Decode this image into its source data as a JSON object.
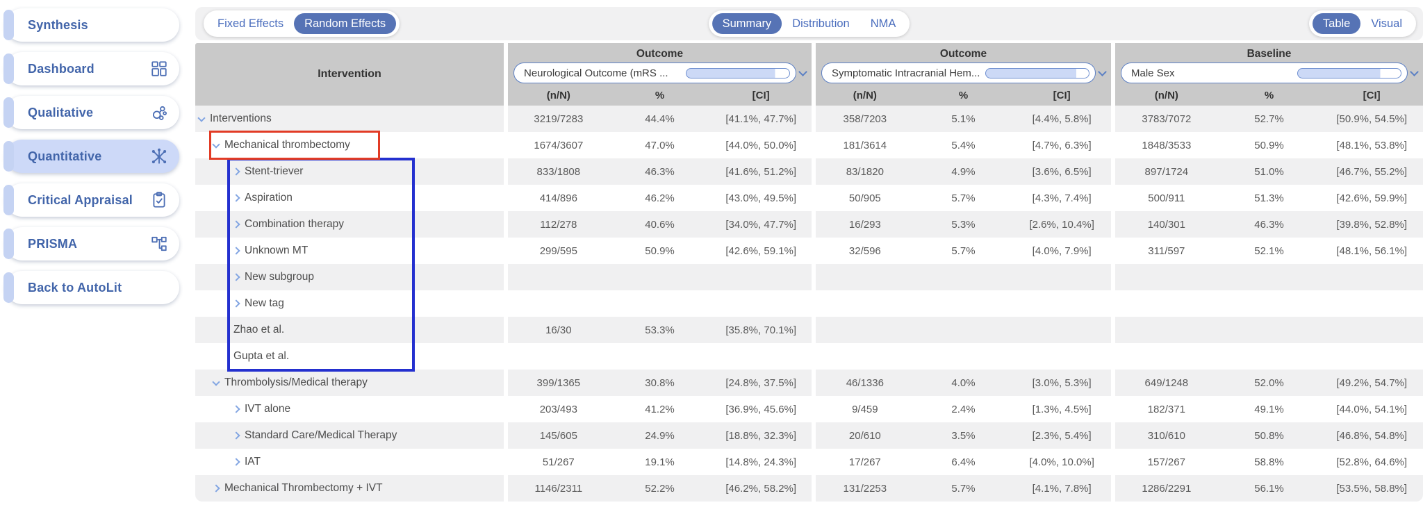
{
  "sidebar": {
    "items": [
      {
        "label": "Synthesis",
        "icon": null,
        "active": false
      },
      {
        "label": "Dashboard",
        "icon": "dashboard-grid-icon",
        "active": false
      },
      {
        "label": "Qualitative",
        "icon": "qualitative-bubbles-icon",
        "active": false
      },
      {
        "label": "Quantitative",
        "icon": "network-graph-icon",
        "active": true
      },
      {
        "label": "Critical Appraisal",
        "icon": "clipboard-check-icon",
        "active": false
      },
      {
        "label": "PRISMA",
        "icon": "flow-diagram-icon",
        "active": false
      },
      {
        "label": "Back to AutoLit",
        "icon": null,
        "active": false
      }
    ]
  },
  "toolbar": {
    "effects_options": [
      "Fixed Effects",
      "Random Effects"
    ],
    "effects_selected": "Random Effects",
    "view_options": [
      "Summary",
      "Distribution",
      "NMA"
    ],
    "view_selected": "Summary",
    "display_options": [
      "Table",
      "Visual"
    ],
    "display_selected": "Table"
  },
  "table": {
    "intervention_header": "Intervention",
    "groups": [
      {
        "title": "Outcome",
        "selected": "Neurological Outcome (mRS ...",
        "progress_pct": 86,
        "columns": [
          "(n/N)",
          "%",
          "[CI]"
        ]
      },
      {
        "title": "Outcome",
        "selected": "Symptomatic Intracranial Hem...",
        "progress_pct": 88,
        "columns": [
          "(n/N)",
          "%",
          "[CI]"
        ]
      },
      {
        "title": "Baseline",
        "selected": "Male Sex",
        "progress_pct": 80,
        "columns": [
          "(n/N)",
          "%",
          "[CI]"
        ]
      }
    ],
    "rows": [
      {
        "name": "Interventions",
        "level": 0,
        "chevron": "down",
        "cells": [
          [
            "3219/7283",
            "44.4%",
            "[41.1%, 47.7%]"
          ],
          [
            "358/7203",
            "5.1%",
            "[4.4%, 5.8%]"
          ],
          [
            "3783/7072",
            "52.7%",
            "[50.9%, 54.5%]"
          ]
        ]
      },
      {
        "name": "Mechanical thrombectomy",
        "level": 1,
        "chevron": "down",
        "cells": [
          [
            "1674/3607",
            "47.0%",
            "[44.0%, 50.0%]"
          ],
          [
            "181/3614",
            "5.4%",
            "[4.7%, 6.3%]"
          ],
          [
            "1848/3533",
            "50.9%",
            "[48.1%, 53.8%]"
          ]
        ]
      },
      {
        "name": "Stent-triever",
        "level": 2,
        "chevron": "right",
        "cells": [
          [
            "833/1808",
            "46.3%",
            "[41.6%, 51.2%]"
          ],
          [
            "83/1820",
            "4.9%",
            "[3.6%, 6.5%]"
          ],
          [
            "897/1724",
            "51.0%",
            "[46.7%, 55.2%]"
          ]
        ]
      },
      {
        "name": "Aspiration",
        "level": 2,
        "chevron": "right",
        "cells": [
          [
            "414/896",
            "46.2%",
            "[43.0%, 49.5%]"
          ],
          [
            "50/905",
            "5.7%",
            "[4.3%, 7.4%]"
          ],
          [
            "500/911",
            "51.3%",
            "[42.6%, 59.9%]"
          ]
        ]
      },
      {
        "name": "Combination therapy",
        "level": 2,
        "chevron": "right",
        "cells": [
          [
            "112/278",
            "40.6%",
            "[34.0%, 47.7%]"
          ],
          [
            "16/293",
            "5.3%",
            "[2.6%, 10.4%]"
          ],
          [
            "140/301",
            "46.3%",
            "[39.8%, 52.8%]"
          ]
        ]
      },
      {
        "name": "Unknown MT",
        "level": 2,
        "chevron": "right",
        "cells": [
          [
            "299/595",
            "50.9%",
            "[42.6%, 59.1%]"
          ],
          [
            "32/596",
            "5.7%",
            "[4.0%, 7.9%]"
          ],
          [
            "311/597",
            "52.1%",
            "[48.1%, 56.1%]"
          ]
        ]
      },
      {
        "name": "New subgroup",
        "level": 2,
        "chevron": "right",
        "cells": [
          [
            "",
            "",
            ""
          ],
          [
            "",
            "",
            ""
          ],
          [
            "",
            "",
            ""
          ]
        ]
      },
      {
        "name": "New tag",
        "level": 2,
        "chevron": "right",
        "cells": [
          [
            "",
            "",
            ""
          ],
          [
            "",
            "",
            ""
          ],
          [
            "",
            "",
            ""
          ]
        ]
      },
      {
        "name": "Zhao et al.",
        "level": 2,
        "chevron": null,
        "cells": [
          [
            "16/30",
            "53.3%",
            "[35.8%, 70.1%]"
          ],
          [
            "",
            "",
            ""
          ],
          [
            "",
            "",
            ""
          ]
        ]
      },
      {
        "name": "Gupta et al.",
        "level": 2,
        "chevron": null,
        "cells": [
          [
            "",
            "",
            ""
          ],
          [
            "",
            "",
            ""
          ],
          [
            "",
            "",
            ""
          ]
        ]
      },
      {
        "name": "Thrombolysis/Medical therapy",
        "level": 1,
        "chevron": "down",
        "cells": [
          [
            "399/1365",
            "30.8%",
            "[24.8%, 37.5%]"
          ],
          [
            "46/1336",
            "4.0%",
            "[3.0%, 5.3%]"
          ],
          [
            "649/1248",
            "52.0%",
            "[49.2%, 54.7%]"
          ]
        ]
      },
      {
        "name": "IVT alone",
        "level": 2,
        "chevron": "right",
        "cells": [
          [
            "203/493",
            "41.2%",
            "[36.9%, 45.6%]"
          ],
          [
            "9/459",
            "2.4%",
            "[1.3%, 4.5%]"
          ],
          [
            "182/371",
            "49.1%",
            "[44.0%, 54.1%]"
          ]
        ]
      },
      {
        "name": "Standard Care/Medical Therapy",
        "level": 2,
        "chevron": "right",
        "cells": [
          [
            "145/605",
            "24.9%",
            "[18.8%, 32.3%]"
          ],
          [
            "20/610",
            "3.5%",
            "[2.3%, 5.4%]"
          ],
          [
            "310/610",
            "50.8%",
            "[46.8%, 54.8%]"
          ]
        ]
      },
      {
        "name": "IAT",
        "level": 2,
        "chevron": "right",
        "cells": [
          [
            "51/267",
            "19.1%",
            "[14.8%, 24.3%]"
          ],
          [
            "17/267",
            "6.4%",
            "[4.0%, 10.0%]"
          ],
          [
            "157/267",
            "58.8%",
            "[52.8%, 64.6%]"
          ]
        ]
      },
      {
        "name": "Mechanical Thrombectomy + IVT",
        "level": 1,
        "chevron": "right",
        "cells": [
          [
            "1146/2311",
            "52.2%",
            "[46.2%, 58.2%]"
          ],
          [
            "131/2253",
            "5.7%",
            "[4.1%, 7.8%]"
          ],
          [
            "1286/2291",
            "56.1%",
            "[53.5%, 58.8%]"
          ]
        ]
      }
    ]
  },
  "annotations": {
    "red_box": {
      "color": "#e23b25",
      "target": "Mechanical thrombectomy row label"
    },
    "blue_box": {
      "color": "#2430cf",
      "target": "Mechanical thrombectomy subgroup and study rows"
    }
  },
  "colors": {
    "accent_blue": "#5673b5",
    "link_blue": "#4a6dbd",
    "sidebar_blue": "#4265aa",
    "header_gray": "#c9c9c9",
    "row_stripe": "#f0f0f1",
    "chevron_blue": "#82a5e2",
    "active_item_bg": "#cdd9f8",
    "progress_fill": "#ccd9f6"
  }
}
